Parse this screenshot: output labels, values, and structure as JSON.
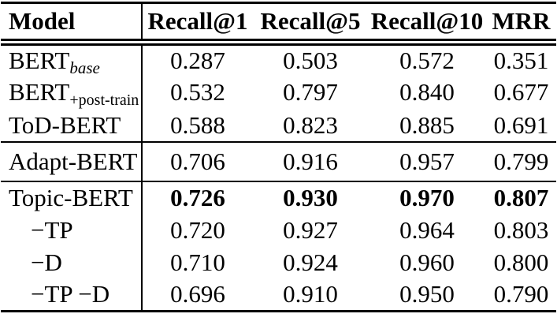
{
  "table": {
    "header": [
      "Model",
      "Recall@1",
      "Recall@5",
      "Recall@10",
      "MRR"
    ],
    "rows": [
      {
        "name": "BERT",
        "sub": "base",
        "v": [
          "0.287",
          "0.503",
          "0.572",
          "0.351"
        ]
      },
      {
        "name": "BERT",
        "sub": "+post-train",
        "v": [
          "0.532",
          "0.797",
          "0.840",
          "0.677"
        ]
      },
      {
        "name": "ToD-BERT",
        "v": [
          "0.588",
          "0.823",
          "0.885",
          "0.691"
        ]
      },
      {
        "name": "Adapt-BERT",
        "v": [
          "0.706",
          "0.916",
          "0.957",
          "0.799"
        ]
      },
      {
        "name": "Topic-BERT",
        "v": [
          "0.726",
          "0.930",
          "0.970",
          "0.807"
        ],
        "bold_values": true
      },
      {
        "name": "−TP",
        "v": [
          "0.720",
          "0.927",
          "0.964",
          "0.803"
        ]
      },
      {
        "name": "−D",
        "v": [
          "0.710",
          "0.924",
          "0.960",
          "0.800"
        ]
      },
      {
        "name": "−TP −D",
        "v": [
          "0.696",
          "0.910",
          "0.950",
          "0.790"
        ]
      }
    ],
    "colors": {
      "text": "#000000",
      "background": "#ffffff",
      "rule": "#000000"
    }
  }
}
